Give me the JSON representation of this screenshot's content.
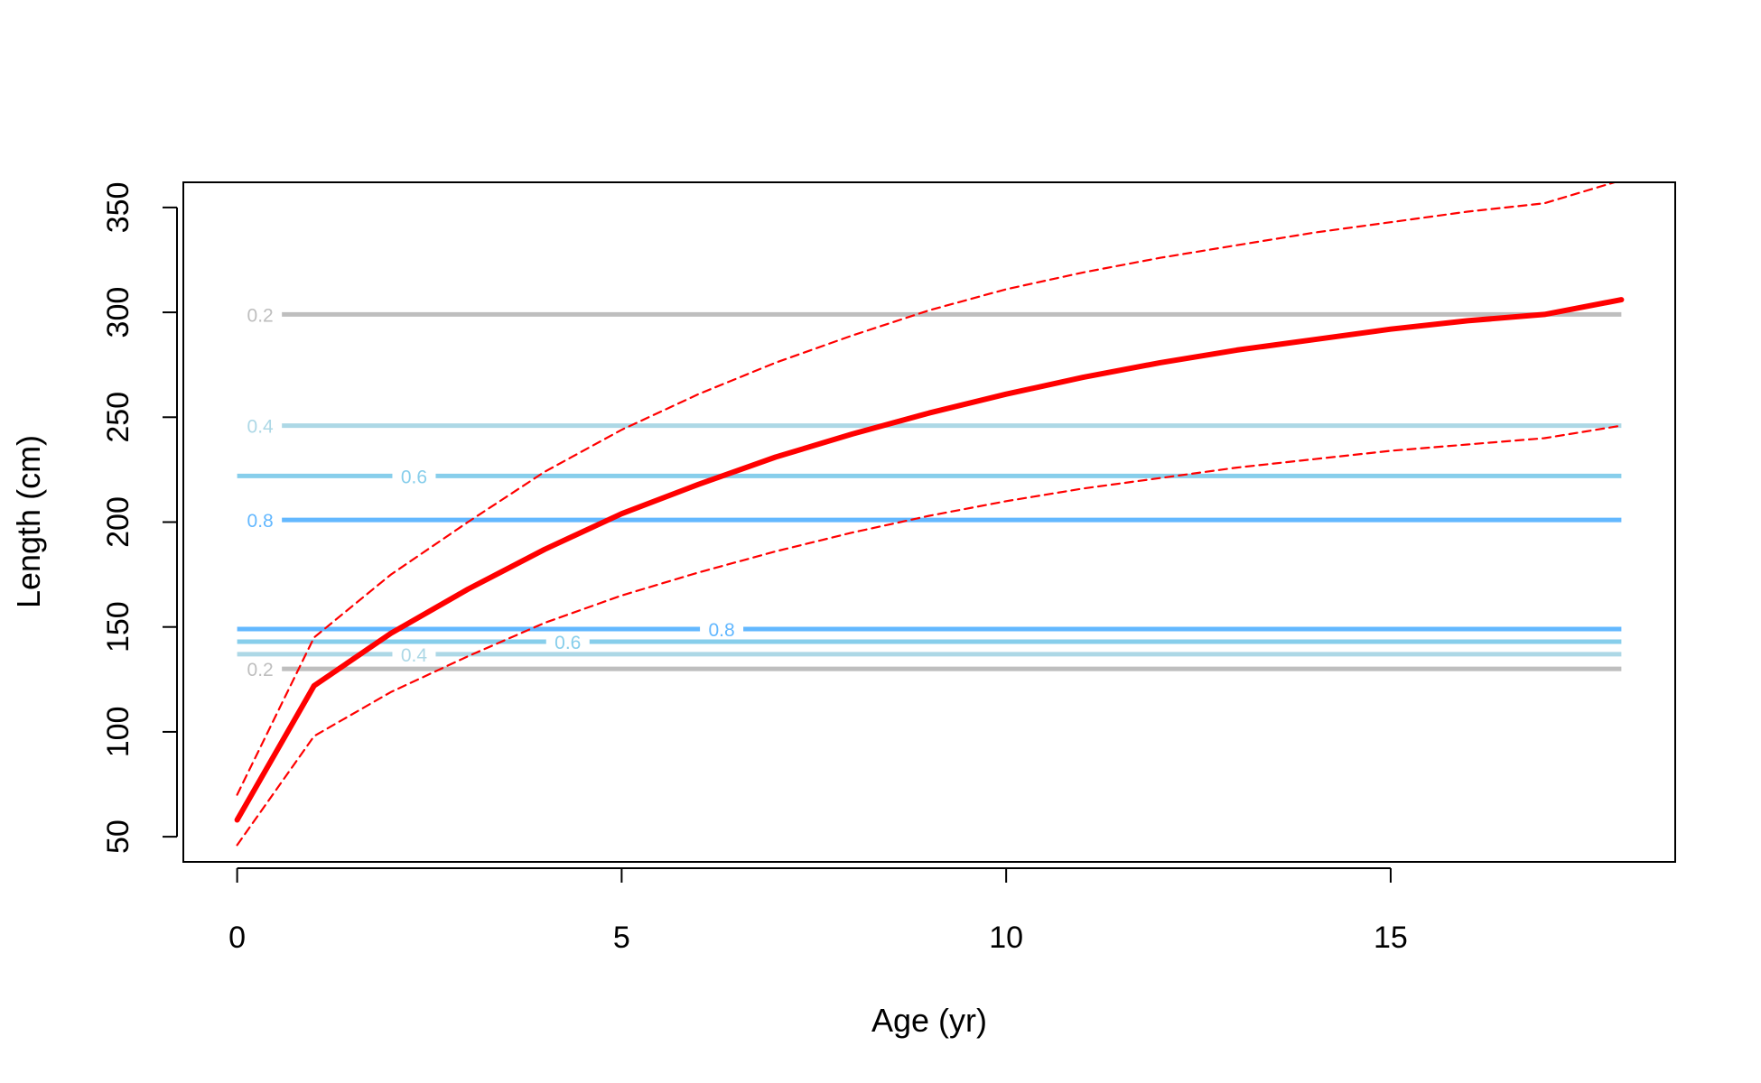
{
  "chart_data": {
    "type": "line",
    "xlabel": "Age (yr)",
    "ylabel": "Length (cm)",
    "xlim": [
      -0.7,
      18.7
    ],
    "ylim": [
      38,
      362
    ],
    "x_ticks": [
      0,
      5,
      10,
      15
    ],
    "y_ticks": [
      50,
      100,
      150,
      200,
      250,
      300,
      350
    ],
    "grid": false,
    "colors": {
      "mean": "#ff0000",
      "ci": "#ff0000",
      "level_0_2": "#bebebe",
      "level_0_4": "#add8e6",
      "level_0_6": "#87ceeb",
      "level_0_8": "#63b8ff"
    },
    "series": [
      {
        "style": "solid",
        "x": [
          0,
          1,
          2,
          3,
          4,
          5,
          6,
          7,
          8,
          9,
          10,
          11,
          12,
          13,
          14,
          15,
          16,
          17,
          18
        ],
        "y": [
          58,
          122,
          147,
          168,
          187,
          204,
          218,
          231,
          242,
          252,
          261,
          269,
          276,
          282,
          287,
          292,
          296,
          299,
          306
        ]
      },
      {
        "style": "dashed",
        "x": [
          0,
          1,
          2,
          3,
          4,
          5,
          6,
          7,
          8,
          9,
          10,
          11,
          12,
          13,
          14,
          15,
          16,
          17,
          18
        ],
        "y": [
          70,
          145,
          175,
          200,
          224,
          244,
          261,
          276,
          289,
          301,
          311,
          319,
          326,
          332,
          338,
          343,
          348,
          352,
          363
        ]
      },
      {
        "style": "dashed",
        "x": [
          0,
          1,
          2,
          3,
          4,
          5,
          6,
          7,
          8,
          9,
          10,
          11,
          12,
          13,
          14,
          15,
          16,
          17,
          18
        ],
        "y": [
          46,
          98,
          119,
          136,
          152,
          165,
          176,
          186,
          195,
          203,
          210,
          216,
          221,
          226,
          230,
          234,
          237,
          240,
          246
        ]
      }
    ],
    "contours": [
      {
        "label": "0.2",
        "y": 299,
        "label_x": 0.3
      },
      {
        "label": "0.4",
        "y": 246,
        "label_x": 0.3
      },
      {
        "label": "0.6",
        "y": 222,
        "label_x": 2.3
      },
      {
        "label": "0.8",
        "y": 201,
        "label_x": 0.3
      },
      {
        "label": "0.8",
        "y": 149,
        "label_x": 6.3
      },
      {
        "label": "0.6",
        "y": 143,
        "label_x": 4.3
      },
      {
        "label": "0.4",
        "y": 137,
        "label_x": 2.3
      },
      {
        "label": "0.2",
        "y": 130,
        "label_x": 0.3
      }
    ]
  }
}
